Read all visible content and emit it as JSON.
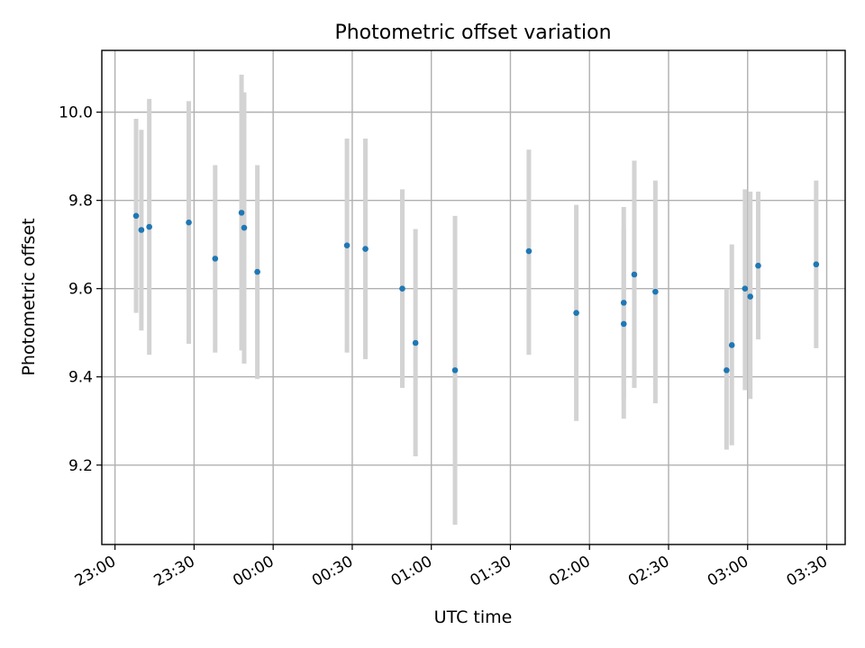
{
  "chart_data": {
    "type": "scatter",
    "title": "Photometric offset variation",
    "xlabel": "UTC time",
    "ylabel": "Photometric offset",
    "x_is_time": true,
    "xlim": [
      "22:55",
      "03:37"
    ],
    "ylim": [
      9.02,
      10.14
    ],
    "x_ticks": [
      "23:00",
      "23:30",
      "00:00",
      "00:30",
      "01:00",
      "01:30",
      "02:00",
      "02:30",
      "03:00",
      "03:30"
    ],
    "y_ticks": [
      "9.2",
      "9.4",
      "9.6",
      "9.8",
      "10.0"
    ],
    "grid": true,
    "colors": {
      "point": "#1f77b4",
      "errorbar": "#d3d3d3",
      "grid": "#b0b0b0"
    },
    "points": [
      {
        "x": "23:08",
        "y": 9.765,
        "ylow": 9.545,
        "yhigh": 9.985
      },
      {
        "x": "23:10",
        "y": 9.733,
        "ylow": 9.505,
        "yhigh": 9.96
      },
      {
        "x": "23:13",
        "y": 9.74,
        "ylow": 9.45,
        "yhigh": 10.03
      },
      {
        "x": "23:28",
        "y": 9.75,
        "ylow": 9.475,
        "yhigh": 10.025
      },
      {
        "x": "23:38",
        "y": 9.668,
        "ylow": 9.455,
        "yhigh": 9.88
      },
      {
        "x": "23:48",
        "y": 9.772,
        "ylow": 9.46,
        "yhigh": 10.085
      },
      {
        "x": "23:49",
        "y": 9.738,
        "ylow": 9.43,
        "yhigh": 10.045
      },
      {
        "x": "23:54",
        "y": 9.638,
        "ylow": 9.395,
        "yhigh": 9.88
      },
      {
        "x": "00:28",
        "y": 9.698,
        "ylow": 9.455,
        "yhigh": 9.94
      },
      {
        "x": "00:35",
        "y": 9.69,
        "ylow": 9.44,
        "yhigh": 9.94
      },
      {
        "x": "00:49",
        "y": 9.6,
        "ylow": 9.375,
        "yhigh": 9.825
      },
      {
        "x": "00:54",
        "y": 9.477,
        "ylow": 9.22,
        "yhigh": 9.735
      },
      {
        "x": "01:09",
        "y": 9.415,
        "ylow": 9.065,
        "yhigh": 9.765
      },
      {
        "x": "01:37",
        "y": 9.685,
        "ylow": 9.45,
        "yhigh": 9.915
      },
      {
        "x": "01:55",
        "y": 9.545,
        "ylow": 9.3,
        "yhigh": 9.79
      },
      {
        "x": "02:13",
        "y": 9.52,
        "ylow": 9.305,
        "yhigh": 9.735
      },
      {
        "x": "02:13",
        "y": 9.568,
        "ylow": 9.35,
        "yhigh": 9.785
      },
      {
        "x": "02:17",
        "y": 9.632,
        "ylow": 9.375,
        "yhigh": 9.89
      },
      {
        "x": "02:25",
        "y": 9.593,
        "ylow": 9.34,
        "yhigh": 9.845
      },
      {
        "x": "02:52",
        "y": 9.415,
        "ylow": 9.235,
        "yhigh": 9.6
      },
      {
        "x": "02:54",
        "y": 9.472,
        "ylow": 9.245,
        "yhigh": 9.7
      },
      {
        "x": "02:59",
        "y": 9.6,
        "ylow": 9.37,
        "yhigh": 9.825
      },
      {
        "x": "03:01",
        "y": 9.582,
        "ylow": 9.35,
        "yhigh": 9.82
      },
      {
        "x": "03:04",
        "y": 9.652,
        "ylow": 9.485,
        "yhigh": 9.82
      },
      {
        "x": "03:26",
        "y": 9.655,
        "ylow": 9.465,
        "yhigh": 9.845
      }
    ]
  }
}
